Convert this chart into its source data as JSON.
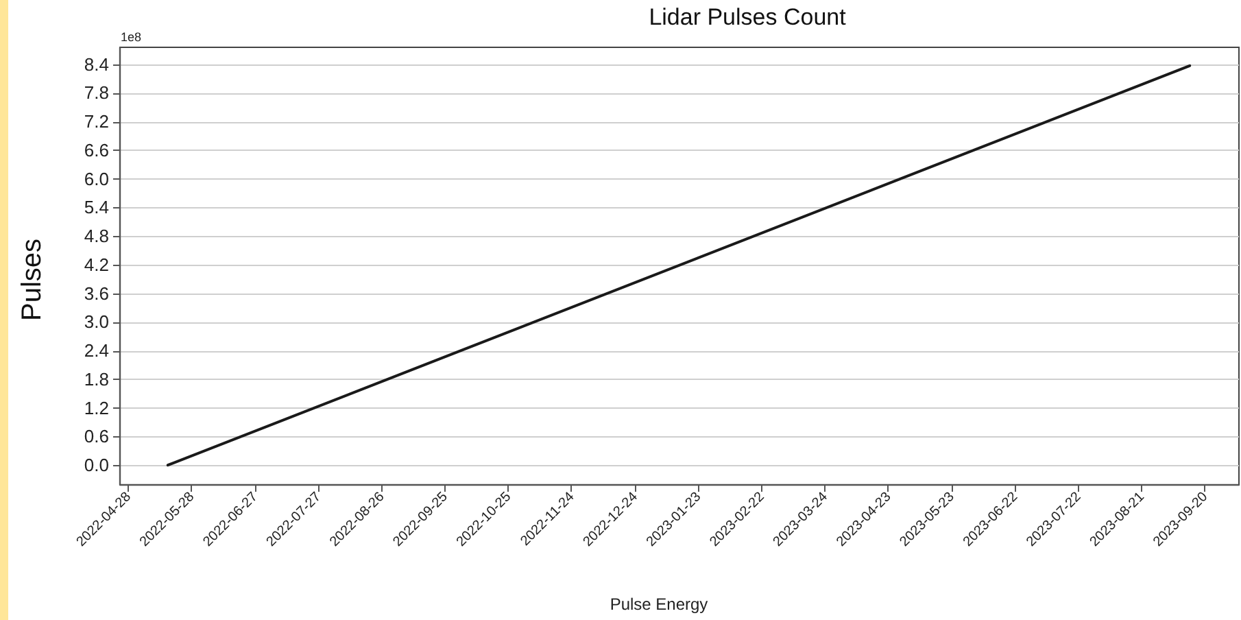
{
  "chart_data": {
    "type": "line",
    "title": "Lidar Pulses Count",
    "xlabel": "Pulse Energy",
    "ylabel": "Pulses",
    "annotations": [
      "1e8"
    ],
    "x": [
      "2022-05-17",
      "2023-09-13"
    ],
    "series": [
      {
        "color": "#1a1a1a",
        "values": [
          0,
          8.37
        ]
      }
    ],
    "xlim": [
      "2022-04-24",
      "2023-10-06"
    ],
    "xticks": [
      "2022-04-28",
      "2022-05-28",
      "2022-06-27",
      "2022-07-27",
      "2022-08-26",
      "2022-09-25",
      "2022-10-25",
      "2022-11-24",
      "2022-12-24",
      "2023-01-23",
      "2023-02-22",
      "2023-03-24",
      "2023-04-23",
      "2023-05-23",
      "2023-06-22",
      "2023-07-22",
      "2023-08-21",
      "2023-09-20"
    ],
    "ylim": [
      -0.4,
      8.77
    ],
    "yticks": [
      {
        "value": 0,
        "label": "0.0"
      },
      {
        "value": 0.6,
        "label": "0.6"
      },
      {
        "value": 1.2,
        "label": "1.2"
      },
      {
        "value": 1.8,
        "label": "1.8"
      },
      {
        "value": 2.4,
        "label": "2.4"
      },
      {
        "value": 3,
        "label": "3.0"
      },
      {
        "value": 3.6,
        "label": "3.6"
      },
      {
        "value": 4.2,
        "label": "4.2"
      },
      {
        "value": 4.8,
        "label": "4.8"
      },
      {
        "value": 5.4,
        "label": "5.4"
      },
      {
        "value": 6,
        "label": "6.0"
      },
      {
        "value": 6.6,
        "label": "6.6"
      },
      {
        "value": 7.2,
        "label": "7.2"
      },
      {
        "value": 7.8,
        "label": "7.8"
      },
      {
        "value": 8.4,
        "label": "8.4"
      }
    ],
    "grid": "y"
  }
}
